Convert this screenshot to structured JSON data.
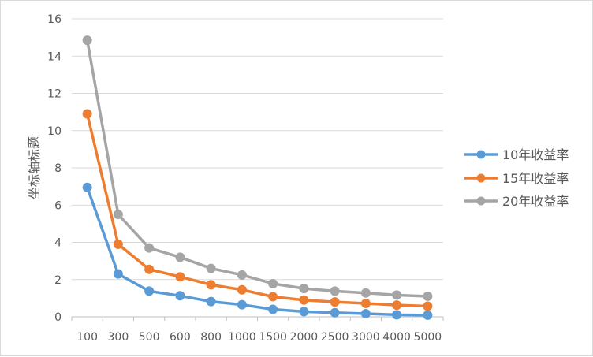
{
  "chart_data": {
    "type": "line",
    "title": "",
    "xlabel": "",
    "ylabel": "坐标轴标题",
    "ylim": [
      0,
      16
    ],
    "yticks": [
      0,
      2,
      4,
      6,
      8,
      10,
      12,
      14,
      16
    ],
    "grid": true,
    "legend_position": "right",
    "categories": [
      "100",
      "300",
      "500",
      "600",
      "800",
      "1000",
      "1500",
      "2000",
      "2500",
      "3000",
      "4000",
      "5000"
    ],
    "series": [
      {
        "name": "10年收益率",
        "color": "#5b9bd5",
        "values": [
          6.95,
          2.3,
          1.38,
          1.13,
          0.82,
          0.65,
          0.4,
          0.28,
          0.22,
          0.17,
          0.11,
          0.09
        ]
      },
      {
        "name": "15年收益率",
        "color": "#ed7d31",
        "values": [
          10.9,
          3.9,
          2.55,
          2.15,
          1.72,
          1.45,
          1.08,
          0.9,
          0.8,
          0.72,
          0.63,
          0.57
        ]
      },
      {
        "name": "20年收益率",
        "color": "#a5a5a5",
        "values": [
          14.85,
          5.5,
          3.7,
          3.2,
          2.6,
          2.25,
          1.78,
          1.52,
          1.38,
          1.28,
          1.17,
          1.1
        ]
      }
    ]
  }
}
